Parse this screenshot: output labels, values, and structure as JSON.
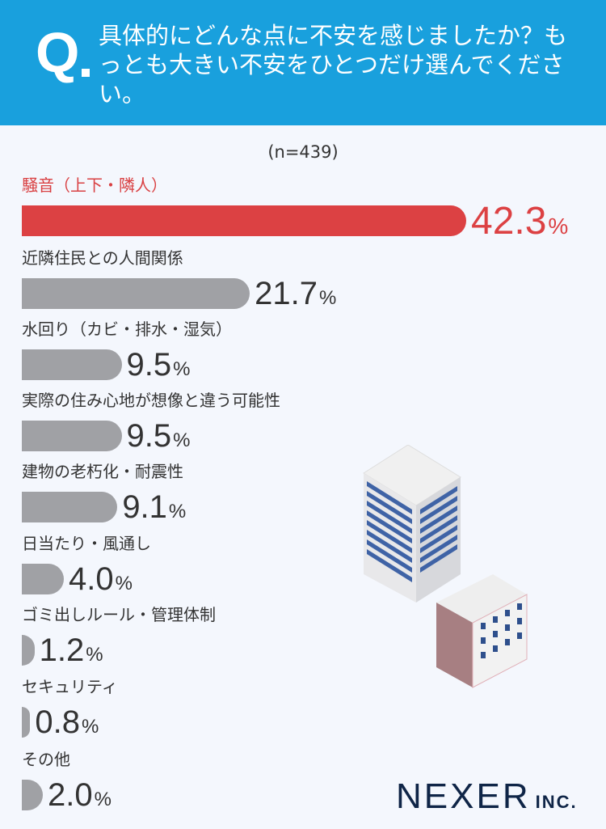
{
  "header": {
    "q_mark": "Q",
    "question": "具体的にどんな点に不安を感じましたか？もっとも大きい不安をひとつだけ選んでください。"
  },
  "sample": "(n=439)",
  "chart_data": {
    "type": "bar",
    "orientation": "horizontal",
    "categories": [
      "騒音（上下・隣人）",
      "近隣住民との人間関係",
      "水回り（カビ・排水・湿気）",
      "実際の住み心地が想像と違う可能性",
      "建物の老朽化・耐震性",
      "日当たり・風通し",
      "ゴミ出しルール・管理体制",
      "セキュリティ",
      "その他"
    ],
    "values": [
      42.3,
      21.7,
      9.5,
      9.5,
      9.1,
      4.0,
      1.2,
      0.8,
      2.0
    ],
    "value_labels": [
      "42.3",
      "21.7",
      "9.5",
      "9.5",
      "9.1",
      "4.0",
      "1.2",
      "0.8",
      "2.0"
    ],
    "unit": "%",
    "highlight_color": "#dc4143",
    "bar_color": "#a0a1a5"
  },
  "logo": {
    "name": "NEXER",
    "suffix": "INC."
  }
}
